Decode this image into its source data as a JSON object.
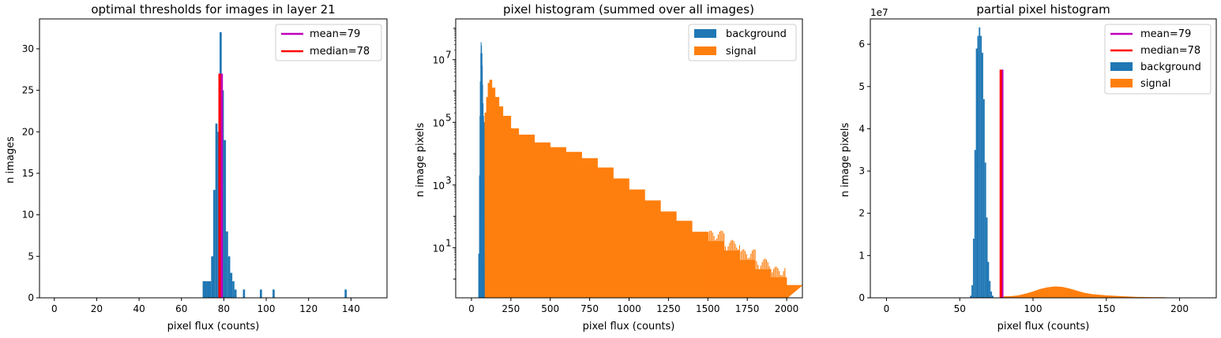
{
  "colors": {
    "background": "#1f77b4",
    "signal": "#ff7f0e",
    "mean": "#bf00bf",
    "median": "#ff0000",
    "overlap": "#e6194b"
  },
  "chart_data": [
    {
      "type": "bar",
      "title": "optimal thresholds for images in layer 21",
      "xlabel": "pixel flux (counts)",
      "ylabel": "n images",
      "xlim": [
        -7,
        157
      ],
      "ylim": [
        0,
        33.6
      ],
      "xticks": [
        0,
        20,
        40,
        60,
        80,
        100,
        120,
        140
      ],
      "yticks": [
        0,
        5,
        10,
        15,
        20,
        25,
        30
      ],
      "legend": "top-right",
      "legend_entries": [
        "mean=79",
        "median=78"
      ],
      "bins": [
        {
          "x0": 70,
          "x1": 72,
          "value": 2
        },
        {
          "x0": 72,
          "x1": 74,
          "value": 2
        },
        {
          "x0": 74,
          "x1": 75,
          "value": 5
        },
        {
          "x0": 75,
          "x1": 76,
          "value": 13
        },
        {
          "x0": 76,
          "x1": 77,
          "value": 21
        },
        {
          "x0": 77,
          "x1": 78,
          "value": 20
        },
        {
          "x0": 78,
          "x1": 79,
          "value": 32
        },
        {
          "x0": 79,
          "x1": 80,
          "value": 25
        },
        {
          "x0": 80,
          "x1": 81,
          "value": 19
        },
        {
          "x0": 81,
          "x1": 82,
          "value": 8
        },
        {
          "x0": 82,
          "x1": 83,
          "value": 5
        },
        {
          "x0": 83,
          "x1": 84,
          "value": 3
        },
        {
          "x0": 84,
          "x1": 85,
          "value": 2
        },
        {
          "x0": 85,
          "x1": 86,
          "value": 1
        },
        {
          "x0": 89,
          "x1": 90,
          "value": 1
        },
        {
          "x0": 97,
          "x1": 98,
          "value": 1
        },
        {
          "x0": 103,
          "x1": 104,
          "value": 1
        },
        {
          "x0": 137,
          "x1": 138,
          "value": 1
        }
      ],
      "vlines": [
        {
          "name": "mean=79",
          "x": 79,
          "y0": 0,
          "y1": 27,
          "color": "#bf00bf"
        },
        {
          "name": "median=78",
          "x": 78,
          "y0": 0,
          "y1": 27,
          "color": "#ff0000"
        }
      ]
    },
    {
      "type": "bar",
      "title": "pixel histogram (summed over all images)",
      "xlabel": "pixel flux (counts)",
      "ylabel": "n image pixels",
      "yscale": "log",
      "xlim": [
        -100,
        2100
      ],
      "ylim_log10": [
        -0.6,
        8.3
      ],
      "xticks": [
        0,
        250,
        500,
        750,
        1000,
        1250,
        1500,
        1750,
        2000
      ],
      "yticks_exp": [
        1,
        3,
        5,
        7
      ],
      "tick_base": "10",
      "legend": "top-right",
      "series": [
        {
          "name": "background",
          "color": "#1f77b4",
          "x": [
            40,
            45,
            50,
            53,
            55,
            58,
            60,
            62,
            65,
            68,
            70,
            72,
            75,
            78
          ],
          "log10_values": [
            -0.6,
            0.8,
            3.3,
            5.2,
            6.3,
            7.2,
            7.55,
            7.45,
            7.2,
            6.8,
            6.2,
            5.6,
            5.2,
            5.0
          ]
        },
        {
          "name": "signal",
          "color": "#ff7f0e",
          "x": [
            78,
            85,
            95,
            105,
            115,
            130,
            150,
            175,
            200,
            250,
            300,
            400,
            500,
            600,
            700,
            800,
            900,
            1000,
            1100,
            1200,
            1300,
            1400,
            1500,
            1600,
            1700,
            1800,
            1900,
            2000
          ],
          "log10_values": [
            5.0,
            5.3,
            5.8,
            6.25,
            6.35,
            6.1,
            5.8,
            5.5,
            5.2,
            4.8,
            4.6,
            4.35,
            4.2,
            4.05,
            3.85,
            3.55,
            3.2,
            2.85,
            2.5,
            2.15,
            1.85,
            1.5,
            1.2,
            0.9,
            0.6,
            0.3,
            0.05,
            -0.2
          ]
        }
      ]
    },
    {
      "type": "bar",
      "title": "partial pixel histogram",
      "xlabel": "pixel flux (counts)",
      "ylabel": "n image pixels",
      "offset_text": "1e7",
      "xlim": [
        -11,
        225
      ],
      "ylim": [
        0,
        6.6
      ],
      "xticks": [
        0,
        50,
        100,
        150,
        200
      ],
      "yticks": [
        0,
        1,
        2,
        3,
        4,
        5,
        6
      ],
      "legend": "top-right",
      "legend_entries": [
        "mean=79",
        "median=78",
        "background",
        "signal"
      ],
      "series": [
        {
          "name": "background",
          "color": "#1f77b4",
          "bins": [
            {
              "x0": 57,
              "x1": 58,
              "value": 0.05
            },
            {
              "x0": 58,
              "x1": 59,
              "value": 0.3
            },
            {
              "x0": 59,
              "x1": 60,
              "value": 1.4
            },
            {
              "x0": 60,
              "x1": 61,
              "value": 3.5
            },
            {
              "x0": 61,
              "x1": 62,
              "value": 5.9
            },
            {
              "x0": 62,
              "x1": 63,
              "value": 6.2
            },
            {
              "x0": 63,
              "x1": 64,
              "value": 6.4
            },
            {
              "x0": 64,
              "x1": 65,
              "value": 6.2
            },
            {
              "x0": 65,
              "x1": 66,
              "value": 5.8
            },
            {
              "x0": 66,
              "x1": 67,
              "value": 4.7
            },
            {
              "x0": 67,
              "x1": 68,
              "value": 3.2
            },
            {
              "x0": 68,
              "x1": 69,
              "value": 1.9
            },
            {
              "x0": 69,
              "x1": 70,
              "value": 0.85
            },
            {
              "x0": 70,
              "x1": 71,
              "value": 0.4
            },
            {
              "x0": 71,
              "x1": 72,
              "value": 0.15
            },
            {
              "x0": 72,
              "x1": 73,
              "value": 0.05
            }
          ]
        },
        {
          "name": "signal",
          "color": "#ff7f0e",
          "x": [
            78,
            85,
            90,
            95,
            100,
            105,
            110,
            115,
            120,
            125,
            130,
            135,
            140,
            150,
            160,
            170,
            180,
            190
          ],
          "values": [
            0.02,
            0.03,
            0.05,
            0.09,
            0.14,
            0.2,
            0.24,
            0.26,
            0.25,
            0.21,
            0.16,
            0.11,
            0.08,
            0.05,
            0.03,
            0.015,
            0.008,
            0.004
          ]
        }
      ],
      "vlines": [
        {
          "name": "mean=79",
          "x": 79,
          "y0": 0,
          "y1": 5.4,
          "color": "#bf00bf"
        },
        {
          "name": "median=78",
          "x": 78,
          "y0": 0,
          "y1": 5.4,
          "color": "#ff0000"
        }
      ]
    }
  ]
}
